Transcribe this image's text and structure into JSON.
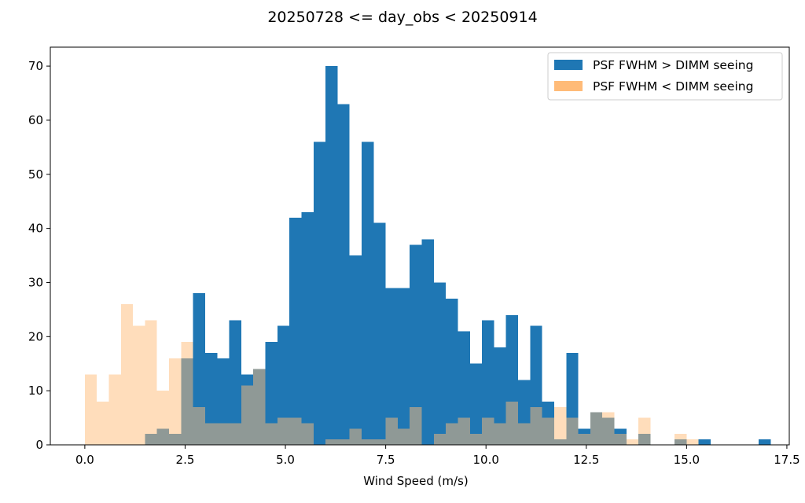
{
  "chart_data": {
    "type": "bar",
    "title": "20250728 <= day_obs < 20250914",
    "xlabel": "Wind Speed (m/s)",
    "ylabel": "",
    "xlim": [
      -0.86,
      17.56
    ],
    "ylim": [
      0,
      73.5
    ],
    "xticks": [
      0.0,
      2.5,
      5.0,
      7.5,
      10.0,
      12.5,
      15.0,
      17.5
    ],
    "xtick_labels": [
      "0.0",
      "2.5",
      "5.0",
      "7.5",
      "10.0",
      "12.5",
      "15.0",
      "17.5"
    ],
    "yticks": [
      0,
      10,
      20,
      30,
      40,
      50,
      60,
      70
    ],
    "ytick_labels": [
      "0",
      "10",
      "20",
      "30",
      "40",
      "50",
      "60",
      "70"
    ],
    "bin_edges": [
      0.0,
      0.3,
      0.6,
      0.9,
      1.2,
      1.5,
      1.8,
      2.1,
      2.4,
      2.7,
      3.0,
      3.3,
      3.6,
      3.9,
      4.2,
      4.5,
      4.8,
      5.1,
      5.4,
      5.7,
      6.0,
      6.3,
      6.6,
      6.9,
      7.2,
      7.5,
      7.8,
      8.1,
      8.4,
      8.7,
      9.0,
      9.3,
      9.6,
      9.9,
      10.2,
      10.5,
      10.8,
      11.1,
      11.4,
      11.7,
      12.0,
      12.3,
      12.6,
      12.9,
      13.2,
      13.5,
      13.8,
      14.1,
      14.4,
      14.7,
      15.0,
      15.3,
      15.6,
      15.9,
      16.2,
      16.5,
      16.8,
      17.1
    ],
    "legend_position": "upper right",
    "grid": false,
    "series": [
      {
        "name": "PSF FWHM > DIMM seeing",
        "color": "#1f77b4",
        "alpha": 1.0,
        "values": [
          0,
          0,
          0,
          0,
          0,
          2,
          3,
          2,
          16,
          28,
          17,
          16,
          23,
          13,
          14,
          19,
          22,
          42,
          43,
          56,
          70,
          63,
          35,
          56,
          41,
          29,
          29,
          37,
          38,
          30,
          27,
          21,
          15,
          23,
          18,
          24,
          12,
          22,
          8,
          1,
          17,
          3,
          6,
          5,
          3,
          0,
          2,
          0,
          0,
          1,
          0,
          1,
          0,
          0,
          0,
          0,
          1
        ]
      },
      {
        "name": "PSF FWHM < DIMM seeing",
        "color": "#ffbb78",
        "alpha": 1.0,
        "values": [
          13,
          8,
          13,
          26,
          22,
          23,
          10,
          16,
          19,
          7,
          4,
          4,
          4,
          11,
          14,
          4,
          5,
          5,
          4,
          0,
          1,
          1,
          3,
          1,
          1,
          5,
          3,
          7,
          0,
          2,
          4,
          5,
          2,
          5,
          4,
          8,
          4,
          7,
          5,
          7,
          5,
          2,
          6,
          6,
          2,
          1,
          5,
          0,
          0,
          2,
          1,
          0,
          0,
          0,
          0,
          0,
          0
        ]
      }
    ]
  }
}
